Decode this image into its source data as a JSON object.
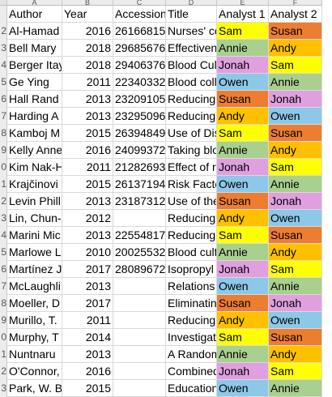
{
  "columns": [
    "A",
    "B",
    "C",
    "D",
    "E",
    "F"
  ],
  "headers": {
    "author": "Author",
    "year": "Year",
    "accession": "Accession",
    "title": "Title",
    "analyst1": "Analyst 1",
    "analyst2": "Analyst 2"
  },
  "row_numbers": [
    "2",
    "3",
    "4",
    "5",
    "6",
    "7",
    "8",
    "9",
    "0",
    "1",
    "2",
    "3",
    "4",
    "5",
    "6",
    "7",
    "8",
    "9",
    "0",
    "1",
    "2",
    "3"
  ],
  "analyst_colors": {
    "Susan": "#ED7D31",
    "Sam": "#FFFF00",
    "Andy": "#FFC000",
    "Annie": "#A9D08E",
    "Jonah": "#E0A0E0",
    "Owen": "#8DC8E8"
  },
  "rows": [
    {
      "author": "Al-Hamad",
      "year": "2016",
      "accession": "26166815",
      "title": "Nurses' co",
      "a1": "Sam",
      "a2": "Susan"
    },
    {
      "author": "Bell Mary",
      "year": "2018",
      "accession": "29685676",
      "title": "Effectivene",
      "a1": "Annie",
      "a2": "Andy"
    },
    {
      "author": "Berger Itay",
      "year": "2018",
      "accession": "29406376",
      "title": "Blood Cult",
      "a1": "Jonah",
      "a2": "Sam"
    },
    {
      "author": "Ge Ying",
      "year": "2011",
      "accession": "22340332",
      "title": "Blood colle",
      "a1": "Owen",
      "a2": "Annie"
    },
    {
      "author": "Hall Rand",
      "year": "2013",
      "accession": "23209105",
      "title": "Reducing",
      "a1": "Susan",
      "a2": "Jonah"
    },
    {
      "author": "Harding A",
      "year": "2013",
      "accession": "23295096",
      "title": "Reducing",
      "a1": "Andy",
      "a2": "Owen"
    },
    {
      "author": "Kamboj M",
      "year": "2015",
      "accession": "26394849",
      "title": "Use of Dis",
      "a1": "Sam",
      "a2": "Susan"
    },
    {
      "author": "Kelly Anne",
      "year": "2016",
      "accession": "24099372",
      "title": "Taking blo",
      "a1": "Annie",
      "a2": "Andy"
    },
    {
      "author": "Kim Nak-H",
      "year": "2011",
      "accession": "21282693",
      "title": "Effect of ro",
      "a1": "Jonah",
      "a2": "Sam"
    },
    {
      "author": "Krajčinovi",
      "year": "2015",
      "accession": "26137194",
      "title": "Risk Facto",
      "a1": "Owen",
      "a2": "Annie"
    },
    {
      "author": "Levin Phill",
      "year": "2013",
      "accession": "23187312",
      "title": "Use of the",
      "a1": "Susan",
      "a2": "Jonah"
    },
    {
      "author": "Lin, Chun-",
      "year": "2012",
      "accession": "",
      "title": "Reducing",
      "a1": "Andy",
      "a2": "Owen"
    },
    {
      "author": "Marini Mic",
      "year": "2013",
      "accession": "22554817",
      "title": "Reducing",
      "a1": "Sam",
      "a2": "Susan"
    },
    {
      "author": "Marlowe L",
      "year": "2010",
      "accession": "20025532",
      "title": "Blood cult",
      "a1": "Annie",
      "a2": "Andy"
    },
    {
      "author": "Martínez J",
      "year": "2017",
      "accession": "28089672",
      "title": "Isopropyl",
      "a1": "Jonah",
      "a2": "Sam"
    },
    {
      "author": "McLaughli",
      "year": "2013",
      "accession": "",
      "title": "Relations",
      "a1": "Owen",
      "a2": "Annie"
    },
    {
      "author": "Moeller, D",
      "year": "2017",
      "accession": "",
      "title": "Eliminatin",
      "a1": "Susan",
      "a2": "Jonah"
    },
    {
      "author": "Murillo, T.",
      "year": "2011",
      "accession": "",
      "title": "Reducing",
      "a1": "Andy",
      "a2": "Owen"
    },
    {
      "author": "Murphy, T",
      "year": "2014",
      "accession": "",
      "title": "Investigati",
      "a1": "Sam",
      "a2": "Susan"
    },
    {
      "author": "Nuntnaru",
      "year": "2013",
      "accession": "",
      "title": "A Random",
      "a1": "Annie",
      "a2": "Andy"
    },
    {
      "author": "O'Connor,",
      "year": "2016",
      "accession": "",
      "title": "Combined",
      "a1": "Jonah",
      "a2": "Sam"
    },
    {
      "author": "Park, W. B",
      "year": "2015",
      "accession": "",
      "title": "Education",
      "a1": "Owen",
      "a2": "Annie"
    }
  ]
}
